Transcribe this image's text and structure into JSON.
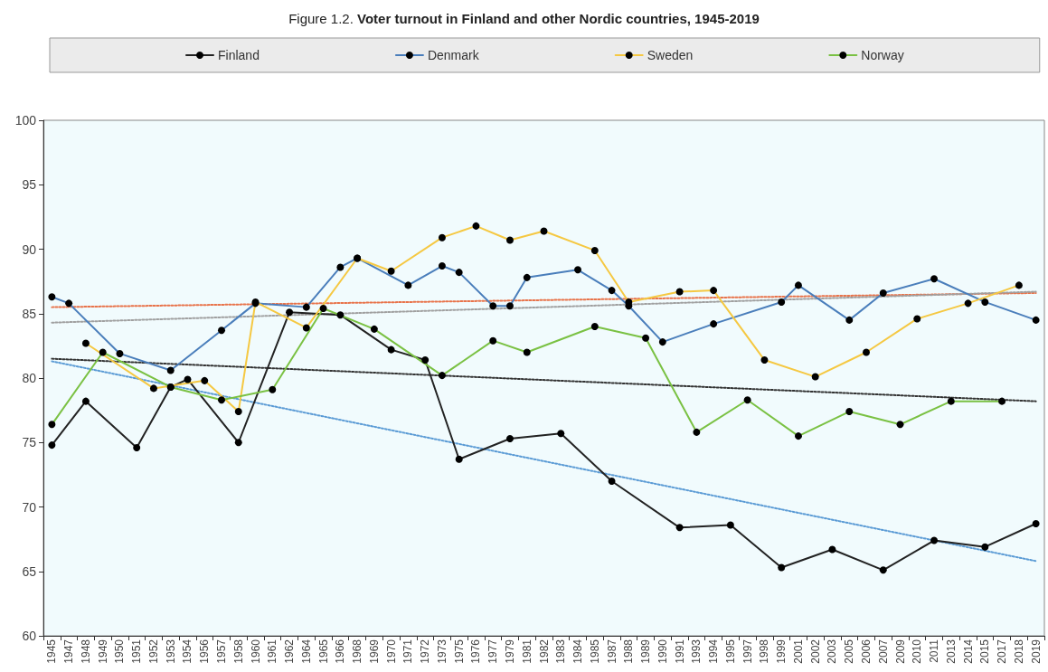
{
  "chart_data": {
    "type": "line",
    "title": "Figure 1.2. Voter turnout in Finland and other Nordic countries, 1945-2019",
    "categories": [
      "1945",
      "1947",
      "1948",
      "1949",
      "1950",
      "1951",
      "1952",
      "1953",
      "1954",
      "1956",
      "1957",
      "1958",
      "1960",
      "1961",
      "1962",
      "1964",
      "1965",
      "1966",
      "1968",
      "1969",
      "1970",
      "1971",
      "1972",
      "1973",
      "1975",
      "1976",
      "1977",
      "1979",
      "1981",
      "1982",
      "1983",
      "1984",
      "1985",
      "1987",
      "1988",
      "1989",
      "1990",
      "1991",
      "1993",
      "1994",
      "1995",
      "1997",
      "1998",
      "1999",
      "2001",
      "2002",
      "2003",
      "2005",
      "2006",
      "2007",
      "2009",
      "2010",
      "2011",
      "2013",
      "2014",
      "2015",
      "2017",
      "2018",
      "2019"
    ],
    "series": [
      {
        "name": "Finland",
        "color": "#222222",
        "values": [
          74.8,
          null,
          78.2,
          null,
          null,
          74.6,
          null,
          79.3,
          79.9,
          null,
          null,
          75.0,
          null,
          null,
          85.1,
          null,
          null,
          84.9,
          null,
          null,
          82.2,
          null,
          81.4,
          null,
          73.7,
          null,
          null,
          75.3,
          null,
          null,
          75.7,
          null,
          null,
          72.0,
          null,
          null,
          null,
          68.4,
          null,
          null,
          68.6,
          null,
          null,
          65.3,
          null,
          null,
          66.7,
          null,
          null,
          65.1,
          null,
          null,
          67.4,
          null,
          null,
          66.9,
          null,
          null,
          68.7
        ]
      },
      {
        "name": "Denmark",
        "color": "#4a7ebb",
        "values": [
          86.3,
          85.8,
          null,
          null,
          81.9,
          null,
          null,
          80.6,
          null,
          null,
          83.7,
          null,
          85.8,
          null,
          null,
          85.5,
          null,
          88.6,
          89.3,
          null,
          null,
          87.2,
          null,
          88.7,
          88.2,
          null,
          85.6,
          85.6,
          87.8,
          null,
          null,
          88.4,
          null,
          86.8,
          85.6,
          null,
          82.8,
          null,
          null,
          84.2,
          null,
          null,
          null,
          85.9,
          87.2,
          null,
          null,
          84.5,
          null,
          86.6,
          null,
          null,
          87.7,
          null,
          null,
          85.9,
          null,
          null,
          84.5
        ]
      },
      {
        "name": "Sweden",
        "color": "#f5c842",
        "values": [
          null,
          null,
          82.7,
          null,
          null,
          null,
          79.2,
          null,
          null,
          79.8,
          null,
          77.4,
          85.9,
          null,
          null,
          83.9,
          null,
          null,
          89.3,
          null,
          88.3,
          null,
          null,
          90.9,
          null,
          91.8,
          null,
          90.7,
          null,
          91.4,
          null,
          null,
          89.9,
          null,
          85.9,
          null,
          null,
          86.7,
          null,
          86.8,
          null,
          null,
          81.4,
          null,
          null,
          80.1,
          null,
          null,
          82.0,
          null,
          null,
          84.6,
          null,
          null,
          85.8,
          null,
          null,
          87.2,
          null
        ]
      },
      {
        "name": "Norway",
        "color": "#7ac143",
        "values": [
          76.4,
          null,
          null,
          82.0,
          null,
          null,
          null,
          79.3,
          null,
          null,
          78.3,
          null,
          null,
          79.1,
          null,
          null,
          85.4,
          null,
          null,
          83.8,
          null,
          null,
          null,
          80.2,
          null,
          null,
          82.9,
          null,
          82.0,
          null,
          null,
          null,
          84.0,
          null,
          null,
          83.1,
          null,
          null,
          75.8,
          null,
          null,
          78.3,
          null,
          null,
          75.5,
          null,
          null,
          77.4,
          null,
          null,
          76.4,
          null,
          null,
          78.2,
          null,
          null,
          78.2,
          null,
          null
        ]
      },
      {
        "type": "line",
        "line_style": "dotted",
        "marker": "none",
        "color": "#e8734a",
        "values": [
          85.5,
          null,
          null,
          null,
          null,
          null,
          null,
          null,
          null,
          null,
          null,
          null,
          null,
          null,
          null,
          null,
          null,
          null,
          null,
          null,
          null,
          null,
          null,
          null,
          null,
          null,
          null,
          null,
          null,
          null,
          null,
          null,
          null,
          null,
          null,
          null,
          null,
          null,
          null,
          null,
          null,
          null,
          null,
          null,
          null,
          null,
          null,
          null,
          null,
          null,
          null,
          null,
          null,
          null,
          null,
          null,
          null,
          null,
          86.6
        ]
      },
      {
        "type": "line",
        "line_style": "dotted",
        "marker": "none",
        "color": "#a0a0a0",
        "values": [
          84.3,
          null,
          null,
          null,
          null,
          null,
          null,
          null,
          null,
          null,
          null,
          null,
          null,
          null,
          null,
          null,
          null,
          null,
          null,
          null,
          null,
          null,
          null,
          null,
          null,
          null,
          null,
          null,
          null,
          null,
          null,
          null,
          null,
          null,
          null,
          null,
          null,
          null,
          null,
          null,
          null,
          null,
          null,
          null,
          null,
          null,
          null,
          null,
          null,
          null,
          null,
          null,
          null,
          null,
          null,
          null,
          null,
          null,
          86.7
        ]
      },
      {
        "type": "line",
        "line_style": "dotted",
        "marker": "none",
        "color": "#333333",
        "values": [
          81.5,
          null,
          null,
          null,
          null,
          null,
          null,
          null,
          null,
          null,
          null,
          null,
          null,
          null,
          null,
          null,
          null,
          null,
          null,
          null,
          null,
          null,
          null,
          null,
          null,
          null,
          null,
          null,
          null,
          null,
          null,
          null,
          null,
          null,
          null,
          null,
          null,
          null,
          null,
          null,
          null,
          null,
          null,
          null,
          null,
          null,
          null,
          null,
          null,
          null,
          null,
          null,
          null,
          null,
          null,
          null,
          null,
          null,
          78.2
        ]
      },
      {
        "type": "line",
        "line_style": "dotted",
        "marker": "none",
        "color": "#5b9bd5",
        "values": [
          81.3,
          null,
          null,
          null,
          null,
          null,
          null,
          null,
          null,
          null,
          null,
          null,
          null,
          null,
          null,
          null,
          null,
          null,
          null,
          null,
          null,
          null,
          null,
          null,
          null,
          null,
          null,
          null,
          null,
          null,
          null,
          null,
          null,
          null,
          null,
          null,
          null,
          null,
          null,
          null,
          null,
          null,
          null,
          null,
          null,
          null,
          null,
          null,
          null,
          null,
          null,
          null,
          null,
          null,
          null,
          null,
          null,
          null,
          65.8
        ]
      }
    ],
    "ylim": [
      60,
      100
    ],
    "yticks": [
      60,
      65,
      70,
      75,
      80,
      85,
      90,
      95,
      100
    ],
    "grid": false,
    "legend": "top",
    "marker": "circle",
    "line_style": "solid"
  }
}
